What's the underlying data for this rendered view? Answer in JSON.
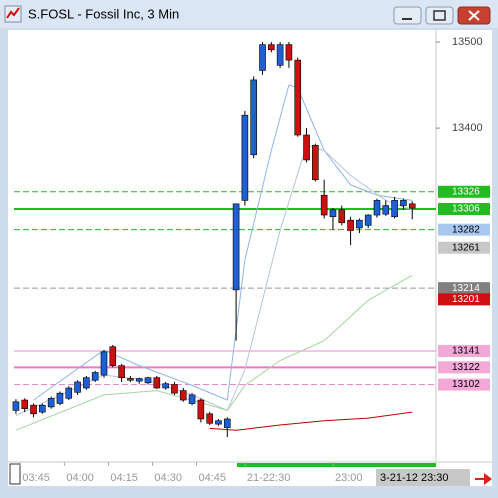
{
  "chart_data": {
    "type": "candlestick",
    "title": "S.FOSL - Fossil Inc, 3 Min",
    "up_color": "#1f5fd6",
    "down_color": "#cc1010",
    "ylim": [
      130.12,
      135.14
    ],
    "yticks": [
      {
        "value": 135,
        "label": "13500"
      },
      {
        "value": 134,
        "label": "13400"
      }
    ],
    "xlim": [
      -0.9,
      47.7
    ],
    "xticks": [
      {
        "value": 0.5,
        "label": "03:45"
      },
      {
        "value": 5.5,
        "label": "04:00"
      },
      {
        "value": 10.5,
        "label": "04:15"
      },
      {
        "value": 15.5,
        "label": "04:30"
      },
      {
        "value": 20.5,
        "label": "04:45"
      },
      {
        "value": 26,
        "label": "21-22:30"
      },
      {
        "value": 36,
        "label": "23:00"
      }
    ],
    "x_end_label": "3-21-12 23:30",
    "open": [
      130.72,
      130.84,
      130.78,
      130.7,
      130.76,
      130.8,
      130.86,
      130.93,
      130.98,
      131.07,
      131.13,
      131.46,
      131.24,
      131.09,
      131.06,
      131.04,
      131.1,
      130.98,
      131.02,
      130.95,
      130.8,
      130.84,
      130.68,
      130.56,
      130.52,
      132.12,
      133.16,
      133.69,
      134.67,
      134.97,
      134.73,
      134.97,
      134.79,
      133.92,
      133.8,
      133.22,
      132.97,
      133.05,
      132.93,
      132.84,
      132.87,
      132.99,
      133.0,
      132.97,
      133.1,
      133.12
    ],
    "high": [
      130.85,
      130.86,
      130.8,
      130.8,
      130.88,
      130.94,
      131.0,
      131.07,
      131.12,
      131.18,
      131.42,
      131.48,
      131.26,
      131.12,
      131.1,
      131.11,
      131.12,
      131.05,
      131.05,
      130.98,
      130.92,
      130.86,
      130.7,
      130.62,
      130.64,
      133.12,
      134.2,
      134.6,
      135.0,
      135.0,
      135.0,
      135.0,
      134.82,
      134.0,
      133.82,
      133.4,
      133.07,
      133.1,
      132.97,
      132.95,
      133.0,
      133.18,
      133.16,
      133.2,
      133.18,
      133.15
    ],
    "low": [
      130.68,
      130.7,
      130.64,
      130.68,
      130.74,
      130.78,
      130.84,
      130.9,
      130.96,
      131.05,
      131.1,
      131.22,
      131.05,
      131.05,
      131.03,
      131.02,
      130.97,
      130.96,
      130.9,
      130.82,
      130.78,
      130.58,
      130.55,
      130.54,
      130.41,
      131.53,
      133.1,
      133.65,
      134.62,
      134.88,
      134.7,
      134.7,
      133.9,
      133.6,
      133.38,
      132.95,
      132.82,
      132.87,
      132.64,
      132.78,
      132.84,
      132.96,
      132.98,
      132.95,
      133.05,
      132.94
    ],
    "close": [
      130.82,
      130.74,
      130.68,
      130.78,
      130.86,
      130.92,
      130.98,
      131.05,
      131.1,
      131.16,
      131.4,
      131.24,
      131.1,
      131.07,
      131.09,
      131.1,
      130.98,
      131.03,
      130.92,
      130.84,
      130.9,
      130.62,
      130.57,
      130.6,
      130.62,
      133.12,
      134.15,
      134.56,
      134.97,
      134.91,
      134.97,
      134.79,
      133.92,
      133.63,
      133.4,
      132.99,
      133.05,
      132.9,
      132.81,
      132.93,
      132.99,
      133.16,
      133.1,
      133.16,
      133.16,
      133.07
    ],
    "overlays": [
      {
        "color": "#8fb4e8",
        "x": [
          2,
          10,
          14,
          20,
          24,
          26,
          29,
          31,
          32,
          35,
          38,
          41,
          45
        ],
        "values": [
          130.84,
          131.42,
          131.24,
          131.01,
          130.84,
          132.47,
          133.74,
          134.5,
          134.47,
          133.74,
          133.34,
          133.22,
          133.16
        ]
      },
      {
        "color": "#b8c4d4",
        "x": [
          0,
          10,
          15,
          20,
          24,
          26,
          30,
          33,
          35,
          38,
          42,
          45
        ],
        "values": [
          130.66,
          131.13,
          131.07,
          130.9,
          130.72,
          131.19,
          132.81,
          133.8,
          133.74,
          133.45,
          133.16,
          133.05
        ]
      },
      {
        "color": "#a6d4a0",
        "x": [
          0,
          10,
          16,
          22,
          24,
          26,
          30,
          35,
          40,
          45
        ],
        "values": [
          130.49,
          130.9,
          130.95,
          130.78,
          130.72,
          131.01,
          131.3,
          131.53,
          132.0,
          132.29
        ]
      },
      {
        "color": "#c00000",
        "x": [
          22,
          25,
          30,
          35,
          40,
          45
        ],
        "values": [
          130.51,
          130.49,
          130.55,
          130.6,
          130.63,
          130.7
        ]
      }
    ],
    "levels": [
      {
        "value": 133.26,
        "label": "13326",
        "color": "#22bb22",
        "line": "dashed",
        "box": "#22bb22",
        "text_color": "#ffffff"
      },
      {
        "value": 133.06,
        "label": "13306",
        "color": "#22bb22",
        "line": "solid",
        "box": "#22bb22",
        "text_color": "#ffffff"
      },
      {
        "value": 132.82,
        "label": "13282",
        "color": "#22bb22",
        "line": "dashed",
        "box": "#a8c8f0",
        "text_color": "#000000"
      },
      {
        "value": 132.61,
        "label": "13261",
        "color": "#bbbbbb",
        "line": "none",
        "box": "#c8c8c8",
        "text_color": "#000000"
      },
      {
        "value": 132.14,
        "label": "13214",
        "color": "#999999",
        "line": "dashed",
        "box": "#808080",
        "text_color": "#ffffff"
      },
      {
        "value": 132.01,
        "label": "13201",
        "color": "#cc1010",
        "line": "none",
        "box": "#cc1010",
        "text_color": "#ffffff"
      },
      {
        "value": 131.41,
        "label": "13141",
        "color": "#ee88cc",
        "line": "thin",
        "box": "#f4a8d8",
        "text_color": "#000000"
      },
      {
        "value": 131.22,
        "label": "13122",
        "color": "#ee77c4",
        "line": "solid",
        "box": "#f4a8d8",
        "text_color": "#000000"
      },
      {
        "value": 131.02,
        "label": "13102",
        "color": "#ee88cc",
        "line": "dashed",
        "box": "#f4a8d8",
        "text_color": "#000000"
      }
    ]
  }
}
